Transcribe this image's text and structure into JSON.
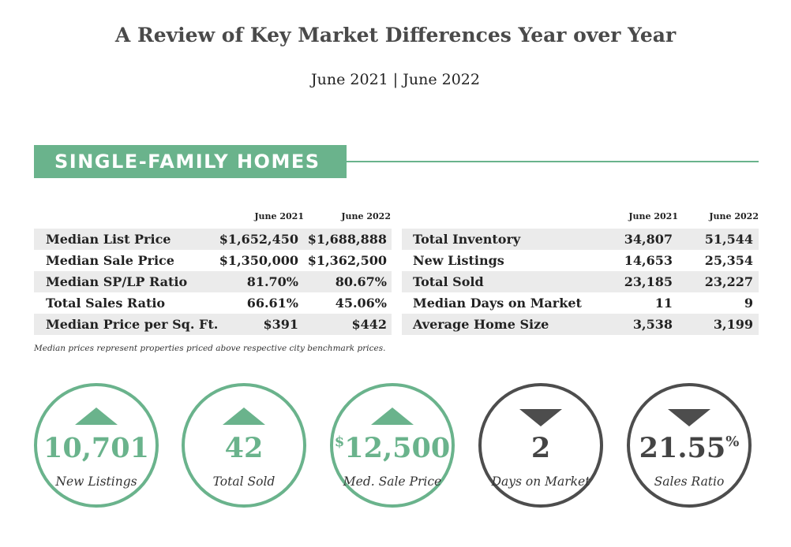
{
  "header": {
    "title": "A Review of Key Market Differences Year over Year",
    "subtitle": "June 2021 | June 2022"
  },
  "banner": {
    "label": "SINGLE-FAMILY HOMES"
  },
  "left_table": {
    "col1": "June 2021",
    "col2": "June 2022",
    "rows": [
      {
        "label": "Median List Price",
        "v1": "$1,652,450",
        "v2": "$1,688,888"
      },
      {
        "label": "Median Sale Price",
        "v1": "$1,350,000",
        "v2": "$1,362,500"
      },
      {
        "label": "Median SP/LP Ratio",
        "v1": "81.70%",
        "v2": "80.67%"
      },
      {
        "label": "Total Sales Ratio",
        "v1": "66.61%",
        "v2": "45.06%"
      },
      {
        "label": "Median Price per Sq. Ft.",
        "v1": "$391",
        "v2": "$442"
      }
    ]
  },
  "right_table": {
    "col1": "June 2021",
    "col2": "June 2022",
    "rows": [
      {
        "label": "Total Inventory",
        "v1": "34,807",
        "v2": "51,544"
      },
      {
        "label": "New Listings",
        "v1": "14,653",
        "v2": "25,354"
      },
      {
        "label": "Total Sold",
        "v1": "23,185",
        "v2": "23,227"
      },
      {
        "label": "Median Days on Market",
        "v1": "11",
        "v2": "9"
      },
      {
        "label": "Average Home Size",
        "v1": "3,538",
        "v2": "3,199"
      }
    ]
  },
  "footnote": "Median prices represent properties priced above respective city benchmark prices.",
  "stats": [
    {
      "value": "10,701",
      "prefix": "",
      "suffix": "",
      "caption": "New Listings",
      "direction": "up"
    },
    {
      "value": "42",
      "prefix": "",
      "suffix": "",
      "caption": "Total Sold",
      "direction": "up"
    },
    {
      "value": "12,500",
      "prefix": "$",
      "suffix": "",
      "caption": "Med. Sale Price",
      "direction": "up"
    },
    {
      "value": "2",
      "prefix": "",
      "suffix": "",
      "caption": "Days on Market",
      "direction": "down"
    },
    {
      "value": "21.55",
      "prefix": "",
      "suffix": "%",
      "caption": "Sales Ratio",
      "direction": "down"
    }
  ],
  "colors": {
    "accent": "#6ab38c",
    "dark": "#4d4d4d",
    "row_shade": "#ebebeb"
  }
}
